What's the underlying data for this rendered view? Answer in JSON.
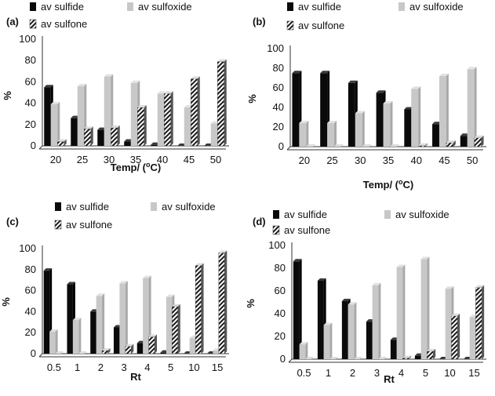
{
  "colors": {
    "sulfide": "#0a0a0a",
    "sulfoxide": "#c8c8c8",
    "sulfone_fill": "#ffffff",
    "sulfone_stripe": "#1a1a1a",
    "axis": "#333333"
  },
  "chart_data": [
    {
      "panel_label": "(a)",
      "type": "bar",
      "categories": [
        "20",
        "25",
        "30",
        "35",
        "40",
        "45",
        "50"
      ],
      "series": [
        {
          "name": "av sulfide",
          "values": [
            55,
            26,
            15,
            4,
            1,
            0,
            0
          ]
        },
        {
          "name": "av sulfoxide",
          "values": [
            39,
            56,
            65,
            59,
            49,
            36,
            21
          ]
        },
        {
          "name": "av sulfone",
          "values": [
            4,
            16,
            17,
            36,
            49,
            63,
            79
          ]
        }
      ],
      "xlabel": "Temp/ (oC)",
      "ylabel": "%",
      "ylim": [
        0,
        100
      ],
      "yticks": [
        "0",
        "20",
        "40",
        "60",
        "80",
        "100"
      ],
      "legend_position": "top"
    },
    {
      "panel_label": "(b)",
      "type": "bar",
      "categories": [
        "20",
        "25",
        "30",
        "35",
        "40",
        "45",
        "50"
      ],
      "series": [
        {
          "name": "av sulfide",
          "values": [
            75,
            75,
            65,
            55,
            38,
            23,
            11
          ]
        },
        {
          "name": "av sulfoxide",
          "values": [
            24,
            24,
            34,
            44,
            59,
            72,
            79
          ]
        },
        {
          "name": "av sulfone",
          "values": [
            0,
            0,
            0,
            0,
            1,
            4,
            9
          ]
        }
      ],
      "xlabel": "Temp/ (oC)",
      "ylabel": "%",
      "ylim": [
        0,
        100
      ],
      "yticks": [
        "0",
        "20",
        "40",
        "60",
        "80",
        "100"
      ],
      "legend_position": "top"
    },
    {
      "panel_label": "(c)",
      "type": "bar",
      "categories": [
        "0.5",
        "1",
        "2",
        "3",
        "4",
        "5",
        "10",
        "15"
      ],
      "series": [
        {
          "name": "av sulfide",
          "values": [
            79,
            66,
            40,
            25,
            10,
            1,
            0,
            0
          ]
        },
        {
          "name": "av sulfoxide",
          "values": [
            21,
            32,
            55,
            67,
            72,
            54,
            15,
            3
          ]
        },
        {
          "name": "av sulfone",
          "values": [
            0,
            0,
            3,
            7,
            16,
            45,
            84,
            96
          ]
        }
      ],
      "xlabel": "Rt",
      "ylabel": "%",
      "ylim": [
        0,
        100
      ],
      "yticks": [
        "0",
        "20",
        "40",
        "60",
        "80",
        "100"
      ],
      "legend_position": "top"
    },
    {
      "panel_label": "(d)",
      "type": "bar",
      "categories": [
        "0.5",
        "1",
        "2",
        "3",
        "4",
        "5",
        "10",
        "15"
      ],
      "series": [
        {
          "name": "av sulfide",
          "values": [
            86,
            69,
            51,
            33,
            17,
            3,
            0,
            0
          ]
        },
        {
          "name": "av sulfoxide",
          "values": [
            13,
            30,
            48,
            65,
            81,
            88,
            62,
            37
          ]
        },
        {
          "name": "av sulfone",
          "values": [
            0,
            0,
            0,
            0,
            1,
            7,
            38,
            63
          ]
        }
      ],
      "xlabel": "Rt",
      "ylabel": "%",
      "ylim": [
        0,
        100
      ],
      "yticks": [
        "0",
        "20",
        "40",
        "60",
        "80",
        "100"
      ],
      "legend_position": "top"
    }
  ]
}
